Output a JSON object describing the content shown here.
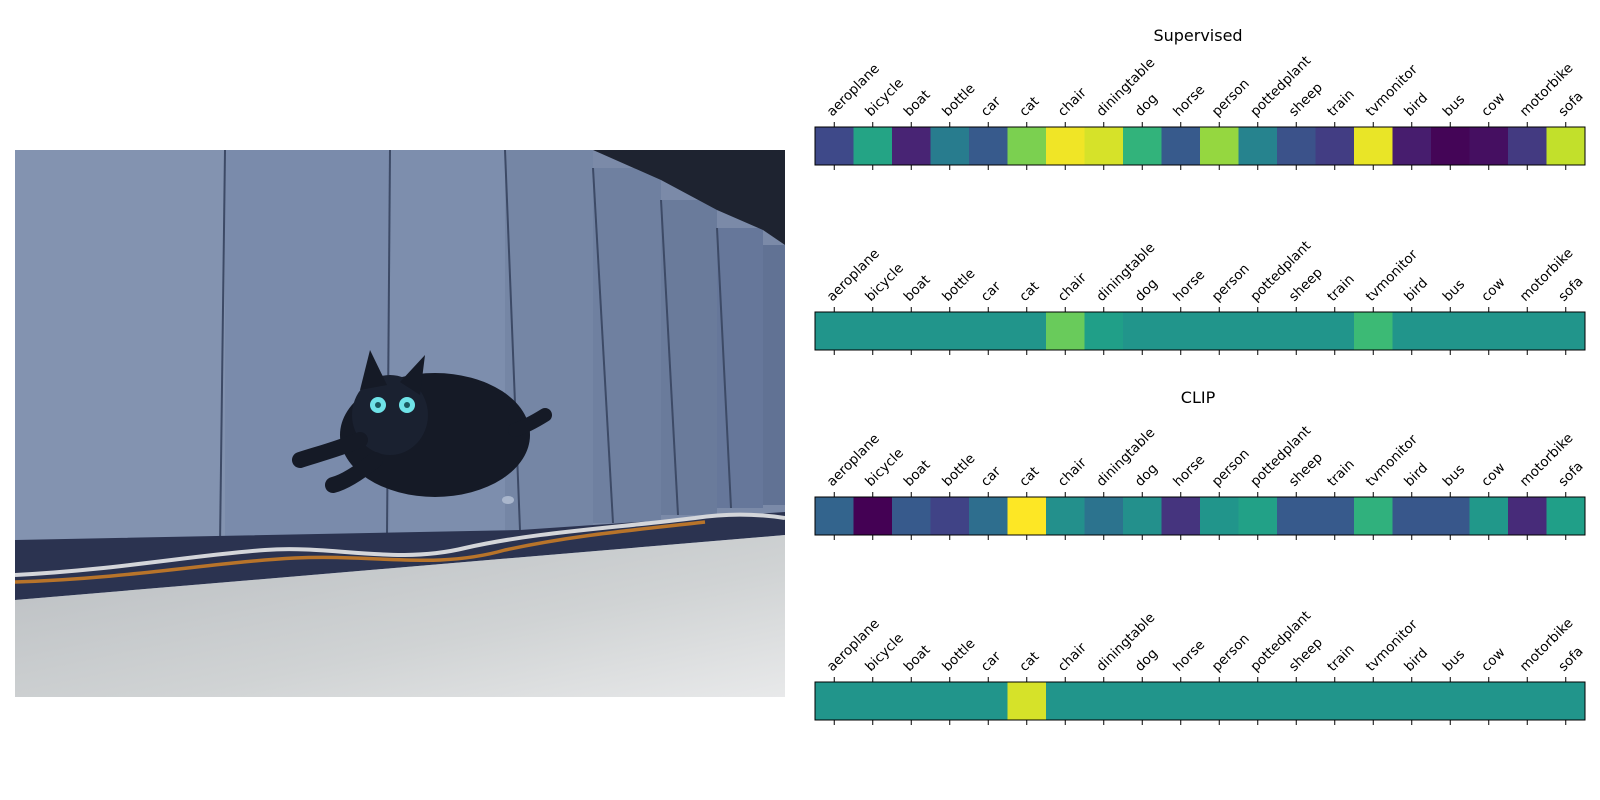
{
  "titles": {
    "supervised": "Supervised",
    "clip": "CLIP"
  },
  "photo": {
    "description_icon": "photo-icon"
  },
  "chart_data": [
    {
      "type": "heatmap",
      "title": "Supervised",
      "categories": [
        "aeroplane",
        "bicycle",
        "boat",
        "bottle",
        "car",
        "cat",
        "chair",
        "diningtable",
        "dog",
        "horse",
        "person",
        "pottedplant",
        "sheep",
        "train",
        "tvmonitor",
        "bird",
        "bus",
        "cow",
        "motorbike",
        "sofa"
      ],
      "values": [
        0.22,
        0.58,
        0.1,
        0.42,
        0.28,
        0.8,
        0.98,
        0.94,
        0.65,
        0.28,
        0.84,
        0.45,
        0.25,
        0.18,
        0.97,
        0.08,
        0.01,
        0.04,
        0.17,
        0.91
      ],
      "colormap": "viridis"
    },
    {
      "type": "heatmap",
      "title": "",
      "categories": [
        "aeroplane",
        "bicycle",
        "boat",
        "bottle",
        "car",
        "cat",
        "chair",
        "diningtable",
        "dog",
        "horse",
        "person",
        "pottedplant",
        "sheep",
        "train",
        "tvmonitor",
        "bird",
        "bus",
        "cow",
        "motorbike",
        "sofa"
      ],
      "values": [
        0.52,
        0.52,
        0.52,
        0.52,
        0.52,
        0.52,
        0.77,
        0.56,
        0.52,
        0.52,
        0.52,
        0.52,
        0.52,
        0.52,
        0.68,
        0.52,
        0.52,
        0.52,
        0.52,
        0.52
      ],
      "colormap": "viridis"
    },
    {
      "type": "heatmap",
      "title": "CLIP",
      "categories": [
        "aeroplane",
        "bicycle",
        "boat",
        "bottle",
        "car",
        "cat",
        "chair",
        "diningtable",
        "dog",
        "horse",
        "person",
        "pottedplant",
        "sheep",
        "train",
        "tvmonitor",
        "bird",
        "bus",
        "cow",
        "motorbike",
        "sofa"
      ],
      "values": [
        0.32,
        0.0,
        0.28,
        0.2,
        0.36,
        1.0,
        0.5,
        0.38,
        0.5,
        0.15,
        0.52,
        0.57,
        0.28,
        0.28,
        0.64,
        0.27,
        0.27,
        0.53,
        0.12,
        0.56
      ],
      "colormap": "viridis"
    },
    {
      "type": "heatmap",
      "title": "",
      "categories": [
        "aeroplane",
        "bicycle",
        "boat",
        "bottle",
        "car",
        "cat",
        "chair",
        "diningtable",
        "dog",
        "horse",
        "person",
        "pottedplant",
        "sheep",
        "train",
        "tvmonitor",
        "bird",
        "bus",
        "cow",
        "motorbike",
        "sofa"
      ],
      "values": [
        0.52,
        0.52,
        0.52,
        0.52,
        0.52,
        0.94,
        0.52,
        0.52,
        0.52,
        0.52,
        0.52,
        0.52,
        0.52,
        0.52,
        0.52,
        0.52,
        0.52,
        0.52,
        0.52,
        0.52
      ],
      "colormap": "viridis"
    }
  ]
}
